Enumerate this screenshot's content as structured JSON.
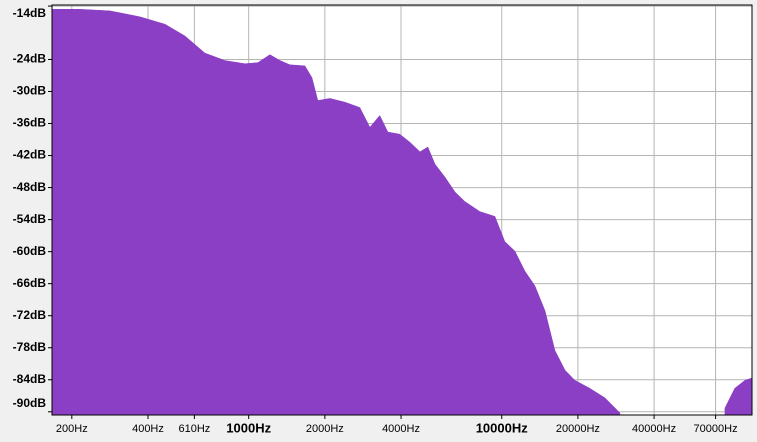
{
  "chart_data": {
    "type": "area",
    "x": [
      167,
      215,
      283,
      371,
      467,
      560,
      671,
      805,
      966,
      1087,
      1213,
      1329,
      1455,
      1668,
      1778,
      1876,
      2093,
      2399,
      2748,
      3013,
      3296,
      3548,
      3954,
      4335,
      4753,
      5105,
      5445,
      5957,
      6531,
      7145,
      8199,
      9397,
      10280,
      11270,
      12330,
      13520,
      14830,
      16220,
      17780,
      19450,
      22280,
      25590,
      29310,
      46240,
      76210,
      83370,
      91410,
      97000
    ],
    "values": [
      -14.6,
      -14.6,
      -14.9,
      -16.0,
      -17.4,
      -19.6,
      -22.8,
      -24.2,
      -24.8,
      -24.6,
      -23.1,
      -24.2,
      -25.0,
      -25.2,
      -27.4,
      -31.7,
      -31.3,
      -32.0,
      -33.0,
      -36.7,
      -34.5,
      -37.6,
      -38.0,
      -39.5,
      -41.3,
      -40.4,
      -43.6,
      -46.0,
      -48.8,
      -50.6,
      -52.5,
      -53.4,
      -58.1,
      -59.9,
      -63.6,
      -66.4,
      -71.1,
      -78.5,
      -82.2,
      -84.1,
      -85.6,
      -87.4,
      -90.2,
      null,
      -89.3,
      -85.6,
      -84.1,
      -83.7
    ],
    "color": "#8a3fc4",
    "log_x": true,
    "grid": true,
    "xlim": [
      167,
      97500
    ],
    "ylim": [
      -90.6,
      -13.8
    ],
    "xticks": [
      {
        "value": 200,
        "label": "200Hz"
      },
      {
        "value": 400,
        "label": "400Hz"
      },
      {
        "value": 610,
        "label": "610Hz"
      },
      {
        "value": 1000,
        "label": "1000Hz"
      },
      {
        "value": 2000,
        "label": "2000Hz"
      },
      {
        "value": 4000,
        "label": "4000Hz"
      },
      {
        "value": 10000,
        "label": "10000Hz"
      },
      {
        "value": 20000,
        "label": "20000Hz"
      },
      {
        "value": 40000,
        "label": "40000Hz"
      },
      {
        "value": 70000,
        "label": "70000Hz"
      }
    ],
    "yticks": [
      {
        "value": -14,
        "label": "-14dB"
      },
      {
        "value": -24,
        "label": "-24dB"
      },
      {
        "value": -30,
        "label": "-30dB"
      },
      {
        "value": -36,
        "label": "-36dB"
      },
      {
        "value": -42,
        "label": "-42dB"
      },
      {
        "value": -48,
        "label": "-48dB"
      },
      {
        "value": -54,
        "label": "-54dB"
      },
      {
        "value": -60,
        "label": "-60dB"
      },
      {
        "value": -66,
        "label": "-66dB"
      },
      {
        "value": -72,
        "label": "-72dB"
      },
      {
        "value": -78,
        "label": "-78dB"
      },
      {
        "value": -84,
        "label": "-84dB"
      },
      {
        "value": -90,
        "label": "-90dB"
      }
    ]
  }
}
